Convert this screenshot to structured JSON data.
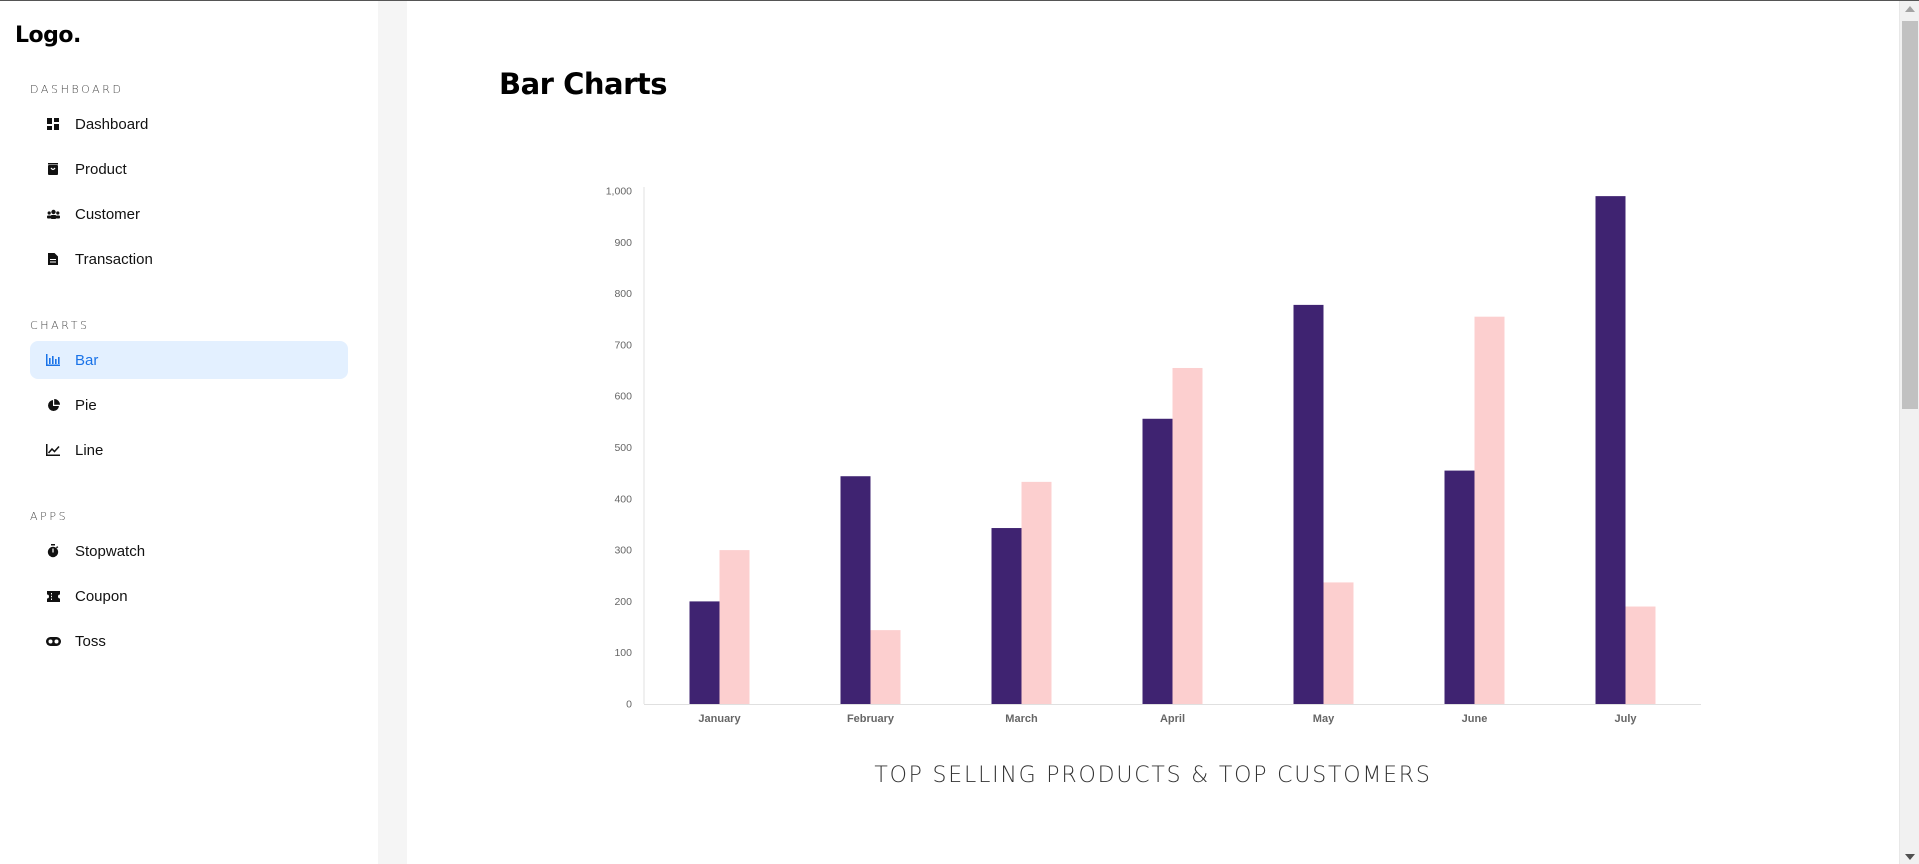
{
  "sidebar": {
    "logo": "Logo.",
    "sections": [
      {
        "title": "DASHBOARD",
        "items": [
          {
            "label": "Dashboard",
            "icon": "dashboard-icon"
          },
          {
            "label": "Product",
            "icon": "shopping-bag-icon"
          },
          {
            "label": "Customer",
            "icon": "people-icon"
          },
          {
            "label": "Transaction",
            "icon": "document-icon"
          }
        ]
      },
      {
        "title": "CHARTS",
        "items": [
          {
            "label": "Bar",
            "icon": "bar-chart-icon",
            "active": true
          },
          {
            "label": "Pie",
            "icon": "pie-chart-icon"
          },
          {
            "label": "Line",
            "icon": "line-chart-icon"
          }
        ]
      },
      {
        "title": "APPS",
        "items": [
          {
            "label": "Stopwatch",
            "icon": "stopwatch-icon"
          },
          {
            "label": "Coupon",
            "icon": "ticket-icon"
          },
          {
            "label": "Toss",
            "icon": "coin-toss-icon"
          }
        ]
      }
    ]
  },
  "main": {
    "title": "Bar Charts",
    "chart_caption": "TOP SELLING PRODUCTS & TOP CUSTOMERS"
  },
  "colors": {
    "accent": "#1a73e8",
    "active_bg": "#e3f0ff",
    "series1": "#3f2371",
    "series2": "#fccfcf"
  },
  "chart_data": {
    "type": "bar",
    "categories": [
      "January",
      "February",
      "March",
      "April",
      "May",
      "June",
      "July"
    ],
    "series": [
      {
        "values": [
          200,
          444,
          343,
          556,
          778,
          455,
          990
        ]
      },
      {
        "values": [
          300,
          144,
          433,
          655,
          237,
          755,
          190
        ]
      }
    ],
    "ylim": [
      0,
      1000
    ],
    "yticks": [
      "0",
      "100",
      "200",
      "300",
      "400",
      "500",
      "600",
      "700",
      "800",
      "900",
      "1,000"
    ],
    "grid": false,
    "legend": "none"
  }
}
